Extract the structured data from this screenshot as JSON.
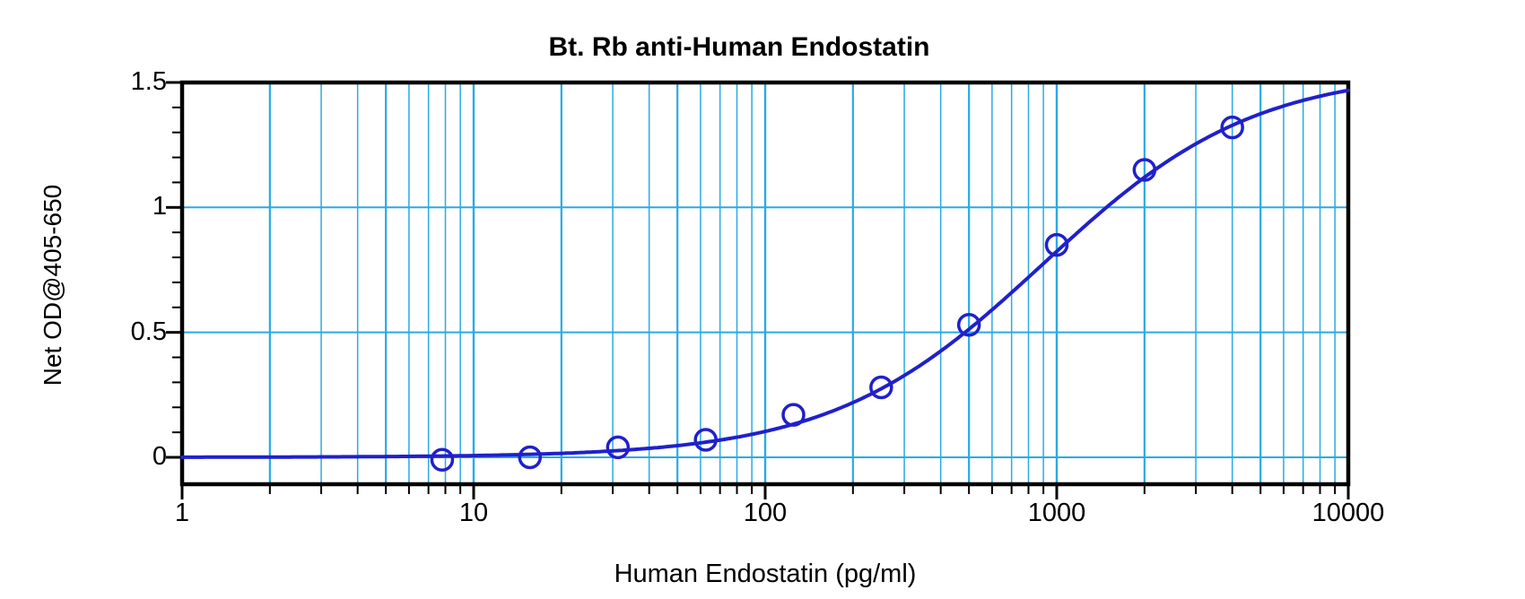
{
  "chart": {
    "title": "Bt. Rb anti-Human Endostatin",
    "x_axis": {
      "title": "Human Endostatin (pg/ml)",
      "scale": "log",
      "min": 1,
      "max": 10000,
      "major_ticks": [
        1,
        10,
        100,
        1000,
        10000
      ],
      "tick_labels": [
        "1",
        "10",
        "100",
        "1000",
        "10000"
      ]
    },
    "y_axis": {
      "title": "Net OD@405-650",
      "scale": "linear",
      "max": 1.5,
      "major_ticks": [
        0,
        0.5,
        1,
        1.5
      ],
      "tick_labels": [
        "0",
        "0.5",
        "1",
        "1.5"
      ],
      "minor_tick_step": 0.1,
      "gridline_values": [
        0,
        0.5,
        1
      ]
    }
  },
  "chart_data": {
    "type": "scatter",
    "title": "Bt. Rb anti-Human Endostatin",
    "xlabel": "Human Endostatin (pg/ml)",
    "ylabel": "Net OD@405-650",
    "xlim": [
      1,
      10000
    ],
    "ylim": [
      -0.11,
      1.5
    ],
    "x_scale": "log",
    "grid": "on",
    "legend": "none",
    "series": [
      {
        "name": "standard-curve-points",
        "marker": "open-circle",
        "points": [
          {
            "x": 7.8,
            "y": -0.01
          },
          {
            "x": 15.6,
            "y": 0.0
          },
          {
            "x": 31.25,
            "y": 0.04
          },
          {
            "x": 62.5,
            "y": 0.07
          },
          {
            "x": 125,
            "y": 0.17
          },
          {
            "x": 250,
            "y": 0.28
          },
          {
            "x": 500,
            "y": 0.53
          },
          {
            "x": 1000,
            "y": 0.85
          },
          {
            "x": 2000,
            "y": 1.15
          },
          {
            "x": 4000,
            "y": 1.32
          }
        ]
      }
    ],
    "fit_curve": {
      "model": "4PL",
      "bottom": 0.0,
      "top": 1.55,
      "ec50": 900,
      "hill": 1.2
    },
    "colors": {
      "curve": "#2020cb",
      "marker": "#2020cb",
      "grid": "#29abe2",
      "axis": "#000000",
      "text": "#000000",
      "background": "#ffffff"
    }
  }
}
